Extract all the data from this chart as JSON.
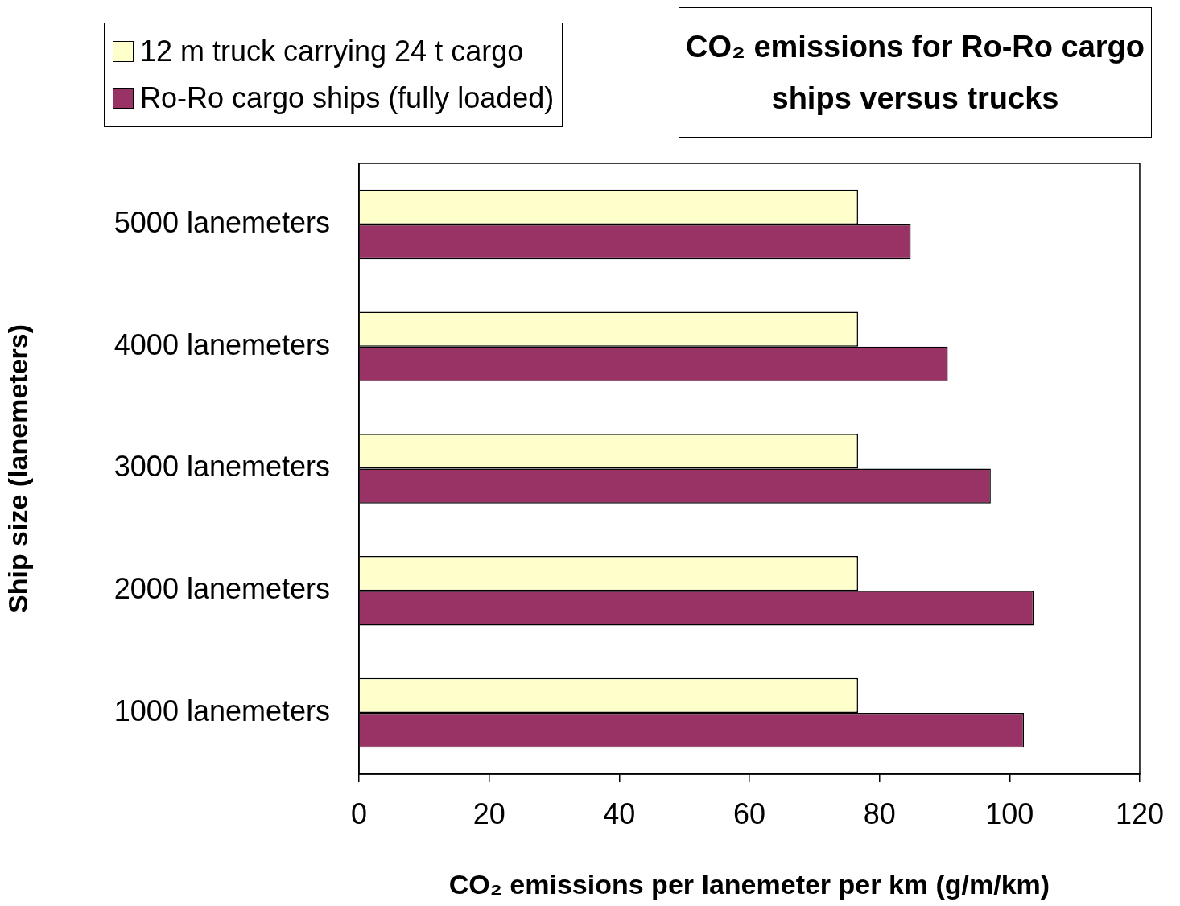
{
  "chart_data": {
    "type": "bar",
    "orientation": "horizontal",
    "title": "CO₂ emissions for Ro-Ro cargo ships versus trucks",
    "xlabel": "CO₂ emissions per lanemeter per km (g/m/km)",
    "ylabel": "Ship size (lanemeters)",
    "categories": [
      "5000 lanemeters",
      "4000 lanemeters",
      "3000 lanemeters",
      "2000 lanemeters",
      "1000 lanemeters"
    ],
    "series": [
      {
        "name": "12 m truck carrying 24 t cargo",
        "color": "#ffffcc",
        "values": [
          76.7,
          76.7,
          76.7,
          76.7,
          76.7
        ]
      },
      {
        "name": "Ro-Ro cargo ships (fully loaded)",
        "color": "#993366",
        "values": [
          84.8,
          90.5,
          97.1,
          103.7,
          102.2
        ]
      }
    ],
    "xlim": [
      0,
      120
    ],
    "xticks": [
      0,
      20,
      40,
      60,
      80,
      100,
      120
    ],
    "grid": false,
    "legend": "top left"
  }
}
